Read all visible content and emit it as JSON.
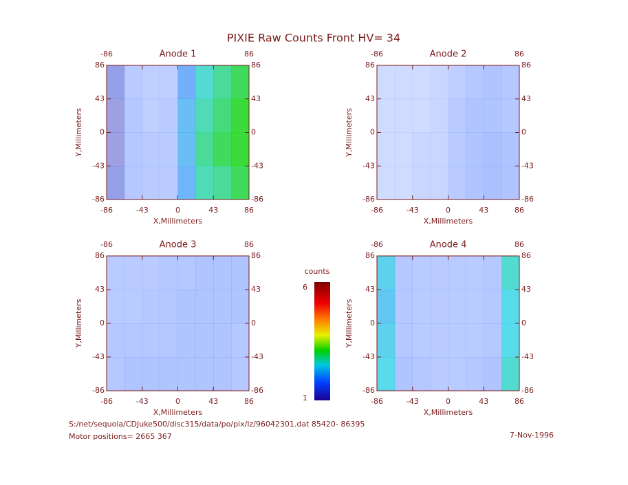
{
  "chart_data": {
    "type": "heatmap",
    "title": "PIXIE Raw Counts Front HV= 34",
    "xlabel": "X,Millimeters",
    "ylabel": "Y,Millimeters",
    "xlim": [
      -86,
      86
    ],
    "ylim": [
      -86,
      86
    ],
    "xticks": [
      -86,
      -43,
      0,
      43,
      86
    ],
    "yticks": [
      -86,
      -43,
      0,
      43,
      86
    ],
    "panels": [
      {
        "title": "Anode 1",
        "grid": [
          [
            1.4,
            0.6,
            0.5,
            0.5,
            2.0,
            2.6,
            2.8,
            3.0
          ],
          [
            1.3,
            0.7,
            0.5,
            0.6,
            2.2,
            2.7,
            2.9,
            3.1
          ],
          [
            1.3,
            0.7,
            0.6,
            0.6,
            2.2,
            2.8,
            3.0,
            3.1
          ],
          [
            1.4,
            0.7,
            0.6,
            0.6,
            2.1,
            2.7,
            2.8,
            3.0
          ]
        ]
      },
      {
        "title": "Anode 2",
        "grid": [
          [
            0.2,
            0.2,
            0.2,
            0.3,
            0.5,
            0.7,
            0.8,
            0.7
          ],
          [
            0.2,
            0.2,
            0.2,
            0.3,
            0.6,
            0.8,
            0.8,
            0.7
          ],
          [
            0.2,
            0.2,
            0.3,
            0.3,
            0.6,
            0.8,
            0.9,
            0.8
          ],
          [
            0.2,
            0.2,
            0.3,
            0.3,
            0.6,
            0.8,
            0.9,
            0.8
          ]
        ]
      },
      {
        "title": "Anode 3",
        "grid": [
          [
            0.6,
            0.6,
            0.6,
            0.7,
            0.7,
            0.8,
            0.8,
            0.8
          ],
          [
            0.6,
            0.6,
            0.7,
            0.7,
            0.8,
            0.8,
            0.8,
            0.8
          ],
          [
            0.7,
            0.7,
            0.7,
            0.7,
            0.8,
            0.8,
            0.8,
            0.7
          ],
          [
            0.7,
            0.8,
            0.8,
            0.8,
            0.8,
            0.8,
            0.8,
            0.7
          ]
        ]
      },
      {
        "title": "Anode 4",
        "grid": [
          [
            2.4,
            0.7,
            0.6,
            0.6,
            0.6,
            0.6,
            0.7,
            2.6
          ],
          [
            2.3,
            0.7,
            0.6,
            0.6,
            0.6,
            0.6,
            0.7,
            2.5
          ],
          [
            2.4,
            0.7,
            0.6,
            0.6,
            0.6,
            0.6,
            0.7,
            2.5
          ],
          [
            2.5,
            0.8,
            0.7,
            0.6,
            0.6,
            0.7,
            0.8,
            2.6
          ]
        ]
      }
    ],
    "colorbar": {
      "label": "counts",
      "clim": [
        1,
        6
      ],
      "ticks": [
        1,
        6
      ]
    },
    "file_note": "S:/net/sequoia/CDJuke500/disc315/data/po/pix/lz/96042301.dat   85420- 86395",
    "motor_note": "Motor positions= 2665 367",
    "date": "7-Nov-1996"
  }
}
